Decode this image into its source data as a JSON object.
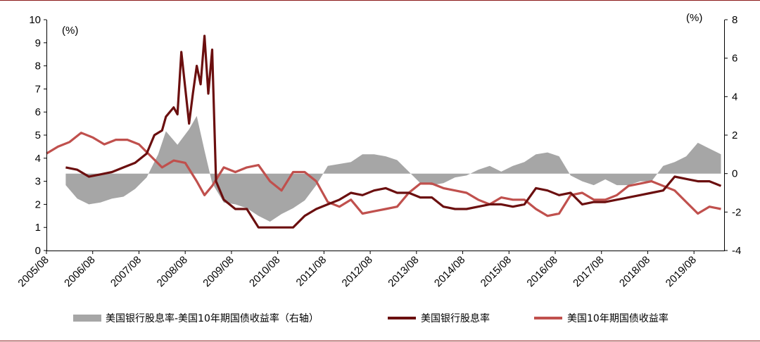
{
  "chart_data": {
    "type": "line",
    "left_unit": "(%)",
    "right_unit": "(%)",
    "y_left_range": [
      0,
      10
    ],
    "y_right_range": [
      -4,
      8
    ],
    "y_left_ticks": [
      "0",
      "1",
      "2",
      "3",
      "4",
      "5",
      "6",
      "7",
      "8",
      "9",
      "10"
    ],
    "y_right_ticks": [
      "-4",
      "-2",
      "0",
      "2",
      "4",
      "6",
      "8"
    ],
    "x_ticks": [
      "2005/08",
      "2006/08",
      "2007/08",
      "2008/08",
      "2009/08",
      "2010/08",
      "2011/08",
      "2012/08",
      "2013/08",
      "2014/08",
      "2015/08",
      "2016/08",
      "2017/08",
      "2018/08",
      "2019/08"
    ],
    "x_range": [
      "2005/08",
      "2020/04"
    ],
    "legend_placement": "bottom",
    "series": [
      {
        "name": "美国银行股息率-美国10年期国债收益率（右轴）",
        "type": "area",
        "axis": "right",
        "color": "#a6a6a6",
        "x": [
          "2006/01",
          "2006/04",
          "2006/07",
          "2006/10",
          "2007/01",
          "2007/04",
          "2007/07",
          "2007/10",
          "2008/01",
          "2008/03",
          "2008/06",
          "2008/09",
          "2008/11",
          "2009/01",
          "2009/03",
          "2009/06",
          "2009/09",
          "2009/12",
          "2010/03",
          "2010/06",
          "2010/09",
          "2010/12",
          "2011/03",
          "2011/06",
          "2011/09",
          "2011/12",
          "2012/03",
          "2012/06",
          "2012/09",
          "2012/12",
          "2013/03",
          "2013/06",
          "2013/09",
          "2013/12",
          "2014/03",
          "2014/06",
          "2014/09",
          "2014/12",
          "2015/03",
          "2015/06",
          "2015/09",
          "2015/12",
          "2016/03",
          "2016/06",
          "2016/09",
          "2016/12",
          "2017/03",
          "2017/06",
          "2017/09",
          "2017/12",
          "2018/03",
          "2018/06",
          "2018/09",
          "2018/12",
          "2019/03",
          "2019/06",
          "2019/09",
          "2019/12",
          "2020/03"
        ],
        "values": [
          -0.6,
          -1.3,
          -1.6,
          -1.5,
          -1.3,
          -1.2,
          -0.8,
          -0.2,
          1.0,
          2.2,
          1.5,
          2.3,
          3.0,
          1.2,
          -0.5,
          -1.5,
          -1.6,
          -1.8,
          -2.2,
          -2.5,
          -2.1,
          -1.8,
          -1.4,
          -0.6,
          0.4,
          0.5,
          0.6,
          1.0,
          1.0,
          0.9,
          0.7,
          0.1,
          -0.5,
          -0.6,
          -0.5,
          -0.2,
          -0.1,
          0.2,
          0.4,
          0.1,
          0.4,
          0.6,
          1.0,
          1.1,
          0.9,
          -0.1,
          -0.4,
          -0.6,
          -0.3,
          -0.6,
          -0.6,
          -0.4,
          -0.4,
          0.4,
          0.6,
          0.9,
          1.6,
          1.3,
          1.0
        ]
      },
      {
        "name": "美国银行股息率",
        "type": "line",
        "axis": "left",
        "color": "#6b0f0f",
        "x": [
          "2006/01",
          "2006/04",
          "2006/07",
          "2006/10",
          "2007/01",
          "2007/04",
          "2007/07",
          "2007/10",
          "2007/12",
          "2008/02",
          "2008/03",
          "2008/05",
          "2008/06",
          "2008/07",
          "2008/09",
          "2008/10",
          "2008/11",
          "2008/12",
          "2009/01",
          "2009/02",
          "2009/03",
          "2009/04",
          "2009/06",
          "2009/09",
          "2009/12",
          "2010/03",
          "2010/06",
          "2010/09",
          "2010/12",
          "2011/03",
          "2011/06",
          "2011/09",
          "2011/12",
          "2012/03",
          "2012/06",
          "2012/09",
          "2012/12",
          "2013/03",
          "2013/06",
          "2013/09",
          "2013/12",
          "2014/03",
          "2014/06",
          "2014/09",
          "2014/12",
          "2015/03",
          "2015/06",
          "2015/09",
          "2015/12",
          "2016/03",
          "2016/06",
          "2016/09",
          "2016/12",
          "2017/03",
          "2017/06",
          "2017/09",
          "2017/12",
          "2018/03",
          "2018/06",
          "2018/09",
          "2018/12",
          "2019/03",
          "2019/06",
          "2019/09",
          "2019/12",
          "2020/03"
        ],
        "values": [
          3.6,
          3.5,
          3.2,
          3.3,
          3.4,
          3.6,
          3.8,
          4.2,
          5.0,
          5.2,
          5.8,
          6.2,
          5.9,
          8.6,
          5.5,
          6.8,
          8.0,
          7.2,
          9.3,
          6.8,
          8.7,
          3.0,
          2.2,
          1.8,
          1.8,
          1.0,
          1.0,
          1.0,
          1.0,
          1.5,
          1.8,
          2.0,
          2.2,
          2.5,
          2.4,
          2.6,
          2.7,
          2.5,
          2.5,
          2.3,
          2.3,
          1.9,
          1.8,
          1.8,
          1.9,
          2.0,
          2.0,
          1.9,
          2.0,
          2.7,
          2.6,
          2.4,
          2.5,
          2.0,
          2.1,
          2.1,
          2.2,
          2.3,
          2.4,
          2.5,
          2.6,
          3.2,
          3.1,
          3.0,
          3.0,
          2.8
        ]
      },
      {
        "name": "美国10年期国债收益率",
        "type": "line",
        "axis": "left",
        "color": "#c0504d",
        "x": [
          "2005/08",
          "2005/11",
          "2006/02",
          "2006/05",
          "2006/08",
          "2006/11",
          "2007/02",
          "2007/05",
          "2007/08",
          "2007/11",
          "2008/02",
          "2008/05",
          "2008/08",
          "2008/11",
          "2009/01",
          "2009/03",
          "2009/06",
          "2009/09",
          "2009/12",
          "2010/03",
          "2010/06",
          "2010/09",
          "2010/12",
          "2011/03",
          "2011/06",
          "2011/09",
          "2011/12",
          "2012/03",
          "2012/06",
          "2012/09",
          "2012/12",
          "2013/03",
          "2013/06",
          "2013/09",
          "2013/12",
          "2014/03",
          "2014/06",
          "2014/09",
          "2014/12",
          "2015/03",
          "2015/06",
          "2015/09",
          "2015/12",
          "2016/03",
          "2016/06",
          "2016/09",
          "2016/12",
          "2017/03",
          "2017/06",
          "2017/09",
          "2017/12",
          "2018/03",
          "2018/06",
          "2018/09",
          "2018/12",
          "2019/03",
          "2019/06",
          "2019/09",
          "2019/12",
          "2020/03"
        ],
        "values": [
          4.2,
          4.5,
          4.7,
          5.1,
          4.9,
          4.6,
          4.8,
          4.8,
          4.6,
          4.1,
          3.6,
          3.9,
          3.8,
          3.0,
          2.4,
          2.8,
          3.6,
          3.4,
          3.6,
          3.7,
          3.0,
          2.6,
          3.4,
          3.4,
          3.0,
          2.1,
          1.9,
          2.2,
          1.6,
          1.7,
          1.8,
          1.9,
          2.5,
          2.9,
          2.9,
          2.7,
          2.6,
          2.5,
          2.2,
          2.0,
          2.3,
          2.2,
          2.2,
          1.8,
          1.5,
          1.6,
          2.4,
          2.5,
          2.2,
          2.2,
          2.4,
          2.8,
          2.9,
          3.0,
          2.8,
          2.6,
          2.1,
          1.6,
          1.9,
          1.8
        ]
      }
    ]
  },
  "legend": [
    {
      "label": "美国银行股息率-美国10年期国债收益率（右轴）",
      "color": "#a6a6a6"
    },
    {
      "label": "美国银行股息率",
      "color": "#6b0f0f"
    },
    {
      "label": "美国10年期国债收益率",
      "color": "#c0504d"
    }
  ]
}
